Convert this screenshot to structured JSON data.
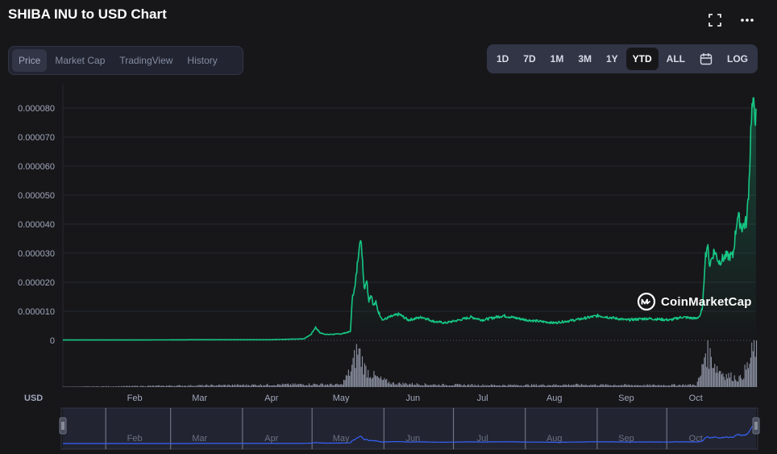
{
  "title": "SHIBA INU to USD Chart",
  "header": {
    "tabs": [
      {
        "label": "Price",
        "active": true
      },
      {
        "label": "Market Cap",
        "active": false
      },
      {
        "label": "TradingView",
        "active": false
      },
      {
        "label": "History",
        "active": false
      }
    ],
    "ranges": [
      {
        "label": "1D",
        "active": false
      },
      {
        "label": "7D",
        "active": false
      },
      {
        "label": "1M",
        "active": false
      },
      {
        "label": "3M",
        "active": false
      },
      {
        "label": "1Y",
        "active": false
      },
      {
        "label": "YTD",
        "active": true
      },
      {
        "label": "ALL",
        "active": false
      }
    ],
    "log_label": "LOG"
  },
  "watermark": "CoinMarketCap",
  "currency_label": "USD",
  "colors": {
    "background": "#17171a",
    "price_line": "#16c784",
    "navigator_line": "#3861fb",
    "volume": "#a1a7bb"
  },
  "chart_data": {
    "type": "line",
    "y_ticks": [
      "0.000080",
      "0.000070",
      "0.000060",
      "0.000050",
      "0.000040",
      "0.000030",
      "0.000020",
      "0.000010",
      "0"
    ],
    "ylim": [
      0,
      8.35e-05
    ],
    "x_ticks": [
      "Feb",
      "Mar",
      "Apr",
      "May",
      "Jun",
      "Jul",
      "Aug",
      "Sep",
      "Oct"
    ],
    "xlim": [
      "2021-01-01",
      "2021-10-27"
    ],
    "grid": true,
    "price_series": {
      "name": "Price",
      "x": [
        "2021-01-01",
        "2021-02-01",
        "2021-03-01",
        "2021-04-01",
        "2021-04-15",
        "2021-04-18",
        "2021-04-20",
        "2021-04-22",
        "2021-04-25",
        "2021-05-01",
        "2021-05-05",
        "2021-05-06",
        "2021-05-07",
        "2021-05-08",
        "2021-05-09",
        "2021-05-10",
        "2021-05-11",
        "2021-05-12",
        "2021-05-13",
        "2021-05-14",
        "2021-05-15",
        "2021-05-16",
        "2021-05-17",
        "2021-05-19",
        "2021-05-22",
        "2021-05-26",
        "2021-05-30",
        "2021-06-05",
        "2021-06-10",
        "2021-06-15",
        "2021-06-21",
        "2021-06-26",
        "2021-07-01",
        "2021-07-10",
        "2021-07-20",
        "2021-08-01",
        "2021-08-10",
        "2021-08-20",
        "2021-09-01",
        "2021-09-10",
        "2021-09-20",
        "2021-09-25",
        "2021-10-01",
        "2021-10-03",
        "2021-10-04",
        "2021-10-05",
        "2021-10-06",
        "2021-10-07",
        "2021-10-09",
        "2021-10-11",
        "2021-10-14",
        "2021-10-17",
        "2021-10-19",
        "2021-10-21",
        "2021-10-23",
        "2021-10-24",
        "2021-10-25",
        "2021-10-26",
        "2021-10-27"
      ],
      "y": [
        1e-07,
        1e-07,
        2e-07,
        2e-07,
        5e-07,
        2e-06,
        4.5e-06,
        2.5e-06,
        2e-06,
        2.2e-06,
        3e-06,
        1.6e-05,
        1.8e-05,
        2.6e-05,
        3.5e-05,
        3.1e-05,
        1.8e-05,
        2.1e-05,
        1.4e-05,
        1.6e-05,
        1.2e-05,
        1.3e-05,
        1e-05,
        7e-06,
        8e-06,
        9e-06,
        7e-06,
        8e-06,
        6.5e-06,
        6e-06,
        7e-06,
        8e-06,
        7e-06,
        8.5e-06,
        7e-06,
        6e-06,
        7e-06,
        8.5e-06,
        7e-06,
        7.5e-06,
        7e-06,
        8e-06,
        7.5e-06,
        8.5e-06,
        1.2e-05,
        2.8e-05,
        3.3e-05,
        2.6e-05,
        3.1e-05,
        2.7e-05,
        2.9e-05,
        2.9e-05,
        4.3e-05,
        3.9e-05,
        4.1e-05,
        5.5e-05,
        7.8e-05,
        8.3e-05,
        7.6e-05
      ]
    },
    "volume_series": {
      "name": "Volume",
      "x": [
        "2021-01-01",
        "2021-04-20",
        "2021-05-01",
        "2021-05-05",
        "2021-05-08",
        "2021-05-10",
        "2021-05-11",
        "2021-05-13",
        "2021-05-17",
        "2021-05-23",
        "2021-06-10",
        "2021-07-10",
        "2021-08-10",
        "2021-09-10",
        "2021-10-01",
        "2021-10-03",
        "2021-10-05",
        "2021-10-06",
        "2021-10-08",
        "2021-10-10",
        "2021-10-14",
        "2021-10-20",
        "2021-10-24",
        "2021-10-26",
        "2021-10-27"
      ],
      "y": [
        0.005,
        0.06,
        0.05,
        0.35,
        0.8,
        0.55,
        0.4,
        0.3,
        0.18,
        0.08,
        0.05,
        0.04,
        0.05,
        0.04,
        0.05,
        0.25,
        0.8,
        0.7,
        0.6,
        0.4,
        0.25,
        0.18,
        0.5,
        0.85,
        1.0
      ]
    },
    "navigator": {
      "x_ticks": [
        "Feb",
        "Mar",
        "Apr",
        "May",
        "Jun",
        "Jul",
        "Aug",
        "Sep",
        "Oct"
      ]
    }
  }
}
